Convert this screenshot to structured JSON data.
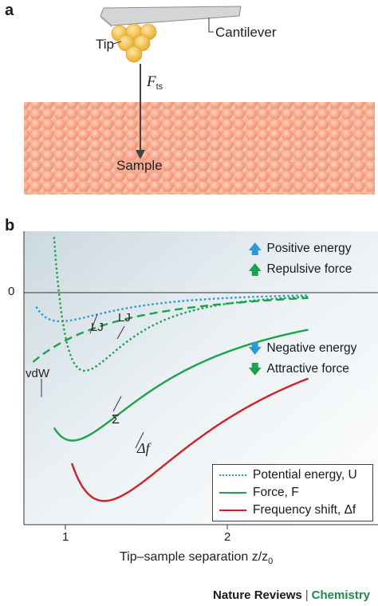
{
  "panel_a": {
    "label": "a",
    "tip_label": "Tip",
    "cantilever_label": "Cantilever",
    "force_label": "F",
    "force_subscript": "ts",
    "sample_label": "Sample",
    "colors": {
      "sample": "#f4a489",
      "sample_edge": "#e8876a",
      "tip": "#f2c14e",
      "cantilever": "#c9cbcd"
    }
  },
  "panel_b": {
    "label": "b",
    "zero_label": "0",
    "xticks": [
      "1",
      "2"
    ],
    "xlabel": "Tip–sample separation z/z",
    "xlabel_subscript": "0",
    "annotations": {
      "lj_1": "LJ",
      "lj_2": "LJ",
      "vdw": "vdW",
      "sigma": "Σ",
      "delta_f": "Δf"
    },
    "info": {
      "positive_energy": "Positive energy",
      "repulsive_force": "Repulsive force",
      "negative_energy": "Negative energy",
      "attractive_force": "Attractive force"
    },
    "legend": {
      "potential": "Potential energy, U",
      "force": "Force, F",
      "frequency": "Frequency shift, Δf"
    },
    "colors": {
      "potential": "#2b9bd6",
      "force": "#1aa34a",
      "frequency": "#d21f2a"
    }
  },
  "footer": {
    "journal": "Nature Reviews",
    "separator": "|",
    "section": "Chemistry"
  }
}
